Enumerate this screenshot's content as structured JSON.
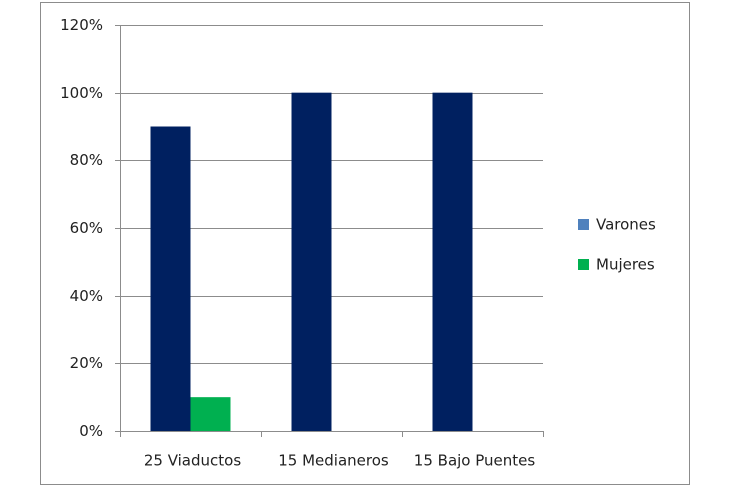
{
  "chart_data": {
    "type": "bar",
    "categories": [
      "25 Viaductos",
      "15 Medianeros",
      "15 Bajo Puentes"
    ],
    "series": [
      {
        "name": "Varones",
        "color": "#002060",
        "legend_color": "#4f81bd",
        "values": [
          90,
          100,
          100
        ]
      },
      {
        "name": "Mujeres",
        "color": "#00b050",
        "legend_color": "#00b050",
        "values": [
          10,
          0,
          0
        ]
      }
    ],
    "ylim": [
      0,
      120
    ],
    "yticks": [
      {
        "value": 0,
        "label": "0%"
      },
      {
        "value": 20,
        "label": "20%"
      },
      {
        "value": 40,
        "label": "40%"
      },
      {
        "value": 60,
        "label": "60%"
      },
      {
        "value": 80,
        "label": "80%"
      },
      {
        "value": 100,
        "label": "100%"
      },
      {
        "value": 120,
        "label": "120%"
      }
    ],
    "grid": true,
    "legend": "right"
  }
}
